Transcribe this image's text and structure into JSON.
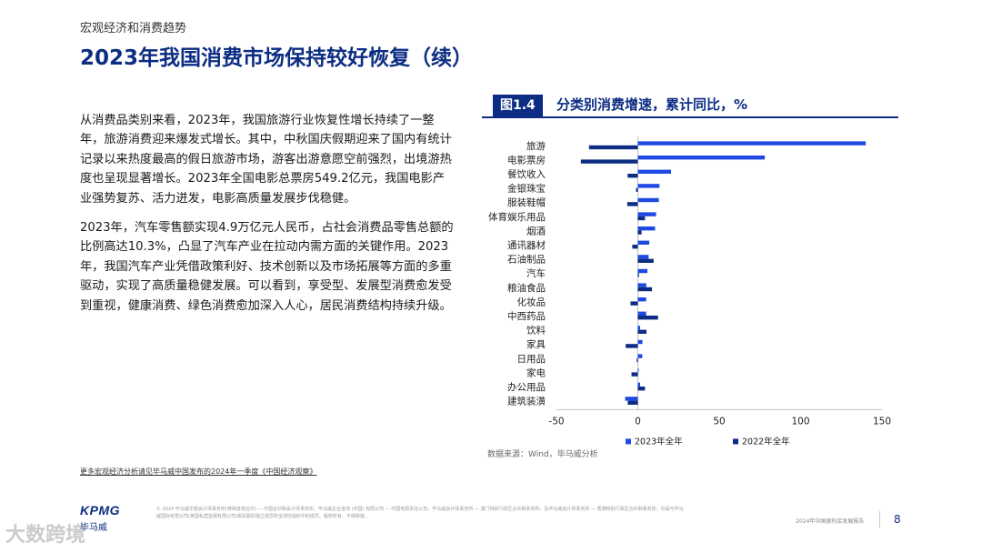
{
  "header": {
    "section_label": "宏观经济和消费趋势",
    "title": "2023年我国消费市场保持较好恢复（续）"
  },
  "body": {
    "paragraphs": [
      "从消费品类别来看，2023年，我国旅游行业恢复性增长持续了一整年，旅游消费迎来爆发式增长。其中，中秋国庆假期迎来了国内有统计记录以来热度最高的假日旅游市场，游客出游意愿空前强烈，出境游热度也呈现显著增长。2023年全国电影总票房549.2亿元，我国电影产业强势复苏、活力迸发，电影高质量发展步伐稳健。",
      "2023年，汽车零售额实现4.9万亿元人民币，占社会消费品零售总额的比例高达10.3%，凸显了汽车产业在拉动内需方面的关键作用。2023年，我国汽车产业凭借政策利好、技术创新以及市场拓展等方面的多重驱动，实现了高质量稳健发展。可以看到，享受型、发展型消费愈发受到重视，健康消费、绿色消费愈加深入人心，居民消费结构持续升级。"
    ]
  },
  "figure": {
    "badge": "图1.4",
    "title": "分类别消费增速，累计同比，%",
    "source": "数据来源：Wind，毕马威分析"
  },
  "chart_data": {
    "type": "bar",
    "orientation": "horizontal",
    "categories": [
      "旅游",
      "电影票房",
      "餐饮收入",
      "金银珠宝",
      "服装鞋帽",
      "体育娱乐用品",
      "烟酒",
      "通讯器材",
      "石油制品",
      "汽车",
      "粮油食品",
      "化妆品",
      "中西药品",
      "饮料",
      "家具",
      "日用品",
      "家电",
      "办公用品",
      "建筑装潢"
    ],
    "series": [
      {
        "name": "2023年全年",
        "color": "#1e49e2",
        "values": [
          140,
          78,
          20.4,
          13.3,
          12.9,
          11.2,
          10.6,
          7,
          6.6,
          5.9,
          5.2,
          5.1,
          5.1,
          1.4,
          2.8,
          2.7,
          0.5,
          1.4,
          -7.8
        ]
      },
      {
        "name": "2022年全年",
        "color": "#0c2d83",
        "values": [
          -30,
          -35,
          -6.3,
          -1.1,
          -6.5,
          4.4,
          2.3,
          -3.4,
          9.7,
          0.7,
          8.7,
          -4.5,
          12.4,
          5.3,
          -7.5,
          -0.7,
          -3.9,
          4.4,
          -6.2
        ]
      }
    ],
    "x_ticks": [
      -50,
      0,
      50,
      100,
      150
    ],
    "xlim": [
      -50,
      150
    ],
    "legend_position": "bottom",
    "grid": false
  },
  "footer": {
    "more_link": "更多宏观经济分析请见毕马威中国发布的2024年一季度《中国经济观察》",
    "disclaimer": "© 2024 毕马威华振会计师事务所(特殊普通合伙) — 中国合伙制会计师事务所，毕马威企业咨询 (中国) 有限公司 — 中国有限责任公司，毕马威会计师事务所 — 澳门特别行政区合伙制事务所，及毕马威会计师事务所 — 香港特别行政区合伙制事务所，均是与毕马威国际有限公司(英国私营担保有限公司)相关联的独立成员所全球性组织中的成员。版权所有，不得转载。",
    "report_name": "2024年中国便利店发展报告",
    "page_number": "8",
    "logo_text": "KPMG",
    "logo_sub": "毕马威",
    "watermark": "大数跨境"
  }
}
